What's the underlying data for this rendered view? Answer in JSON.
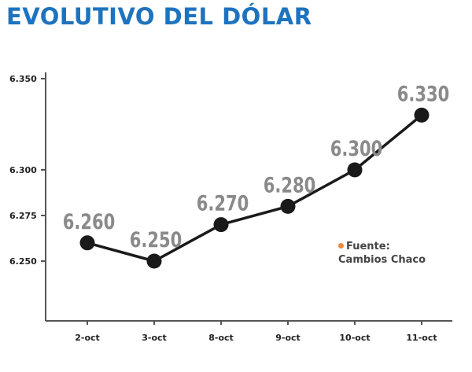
{
  "colors": {
    "title": "#1e73be",
    "line": "#1a1a1a",
    "axis": "#555555",
    "label": "#8a8a8a",
    "source_bullet": "#f08a3c"
  },
  "chart_data": {
    "type": "line",
    "title": "EVOLUTIVO DEL DÓLAR",
    "xlabel": "",
    "ylabel": "",
    "categories": [
      "2-oct",
      "3-oct",
      "8-oct",
      "9-oct",
      "10-oct",
      "11-oct"
    ],
    "series": [
      {
        "values": [
          6260,
          6250,
          6270,
          6280,
          6300,
          6330
        ]
      }
    ],
    "data_labels": [
      "6.260",
      "6.250",
      "6.270",
      "6.280",
      "6.300",
      "6.330"
    ],
    "y_ticks": [
      6250,
      6275,
      6300,
      6350
    ],
    "y_tick_labels": [
      "6.250",
      "6.275",
      "6.300",
      "6.350"
    ],
    "ylim": [
      6225,
      6360
    ],
    "grid": false,
    "source": {
      "label": "Fuente:",
      "text": "Cambios Chaco"
    }
  }
}
